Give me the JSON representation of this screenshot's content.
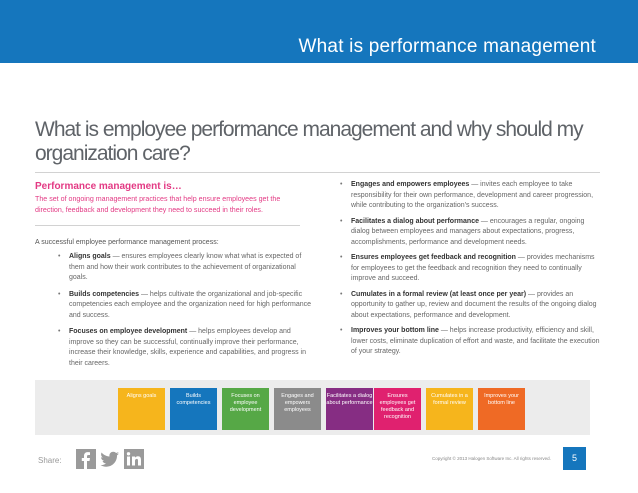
{
  "header": {
    "title": "What is performance management"
  },
  "main": {
    "title": "What is employee performance management and why should my organization care?"
  },
  "definition": {
    "heading": "Performance management is…",
    "body": "The set of ongoing management practices that help ensure employees get the direction, feedback and development they need to succeed in their roles."
  },
  "intro": "A successful employee performance management process:",
  "left_bullets": [
    {
      "bold": "Aligns goals",
      "text": " — ensures employees clearly know what what is expected of them and how their work contributes to the achievement of organizational goals."
    },
    {
      "bold": "Builds competencies",
      "text": " — helps cultivate the organizational and job-specific competencies each employee and the organization need for high performance and success."
    },
    {
      "bold": "Focuses on employee development",
      "text": " — helps employees develop and improve so they can be successful, continually improve their performance, increase their knowledge, skills, experience and capabilities, and progress in their careers."
    }
  ],
  "right_bullets": [
    {
      "bold": "Engages and empowers employees",
      "text": " — invites each employee to take responsibility for their own performance, development and career progression, while contributing to the organization's success."
    },
    {
      "bold": "Facilitates a dialog about performance",
      "text": " — encourages a regular, ongoing dialog between employees and managers about expectations, progress, accomplishments, performance and development needs."
    },
    {
      "bold": "Ensures employees get feedback and recognition",
      "text": " — provides mechanisms for employees to get the feedback and recognition they need to continually improve and succeed."
    },
    {
      "bold": "Cumulates in a formal review (at least once per year)",
      "text": " — provides an opportunity to gather up, review and document the results of the ongoing dialog about expectations, performance and development."
    },
    {
      "bold": "Improves your bottom line",
      "text": " — helps increase productivity, efficiency and skill, lower costs, eliminate duplication of effort and waste, and facilitate the execution of your strategy."
    }
  ],
  "tiles": [
    {
      "label": "Aligns goals",
      "color": "#f6b51c"
    },
    {
      "label": "Builds competencies",
      "color": "#1576bd"
    },
    {
      "label": "Focuses on employee development",
      "color": "#56a846"
    },
    {
      "label": "Engages and empowers employees",
      "color": "#8b8b8b"
    },
    {
      "label": "Facilitates a dialog about performance",
      "color": "#862d83"
    },
    {
      "label": "Ensures employees get feedback and recognition",
      "color": "#e0216f"
    },
    {
      "label": "Cumulates in a formal review",
      "color": "#f6b51c"
    },
    {
      "label": "Improves your bottom line",
      "color": "#ef6a25"
    }
  ],
  "footer": {
    "share_label": "Share:",
    "social_icons": [
      "facebook-icon",
      "twitter-icon",
      "linkedin-icon"
    ],
    "copyright": "Copyright © 2013 Halogen Software Inc. All rights reserved.",
    "page_number": "5"
  }
}
